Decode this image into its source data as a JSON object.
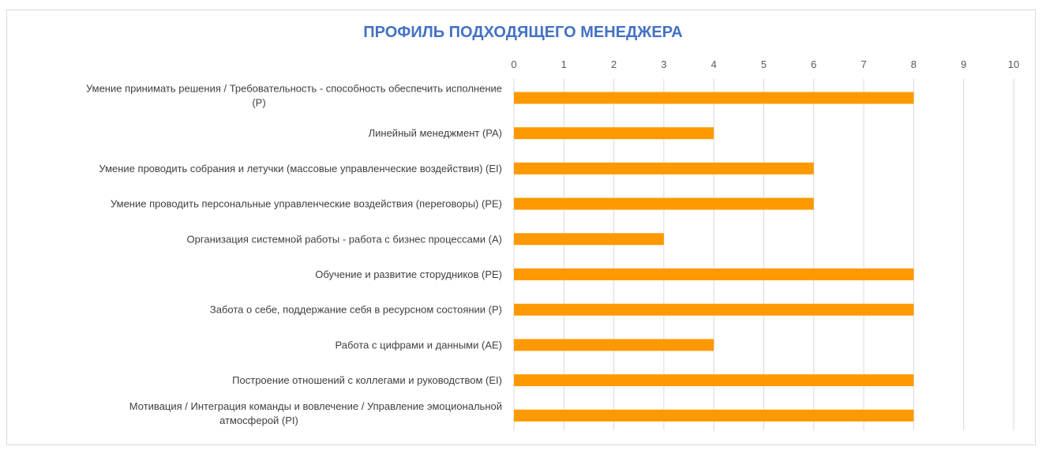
{
  "chart_data": {
    "type": "bar",
    "orientation": "horizontal",
    "title": "ПРОФИЛЬ ПОДХОДЯЩЕГО МЕНЕДЖЕРА",
    "xlim": [
      0,
      10
    ],
    "x_ticks": [
      "0",
      "1",
      "2",
      "3",
      "4",
      "5",
      "6",
      "7",
      "8",
      "9",
      "10"
    ],
    "x_axis_position": "top",
    "grid": true,
    "bar_color": "#ff9900",
    "title_color": "#4472c4",
    "categories": [
      [
        "Умение принимать решения  / Требовательность - способность обеспечить исполнение",
        "(P)"
      ],
      [
        "Линейный менеджмент (PA)"
      ],
      [
        "Умение проводить собрания и летучки (массовые управленческие воздействия) (EI)"
      ],
      [
        "Умение проводить персональные управленческие воздействия (переговоры) (PE)"
      ],
      [
        "Организация системной работы - работа с бизнес процессами (A)"
      ],
      [
        "Обучение и развитие сторудников (PE)"
      ],
      [
        "Забота о себе, поддержание себя в ресурсном состоянии (P)"
      ],
      [
        "Работа с цифрами и данными (AE)"
      ],
      [
        "Построение отношений с коллегами и руководством (EI)"
      ],
      [
        "Мотивация / Интеграция команды и вовлечение / Управление эмоциональной",
        "атмосферой (PI)"
      ]
    ],
    "values": [
      8,
      4,
      6,
      6,
      3,
      8,
      8,
      4,
      8,
      8
    ]
  }
}
